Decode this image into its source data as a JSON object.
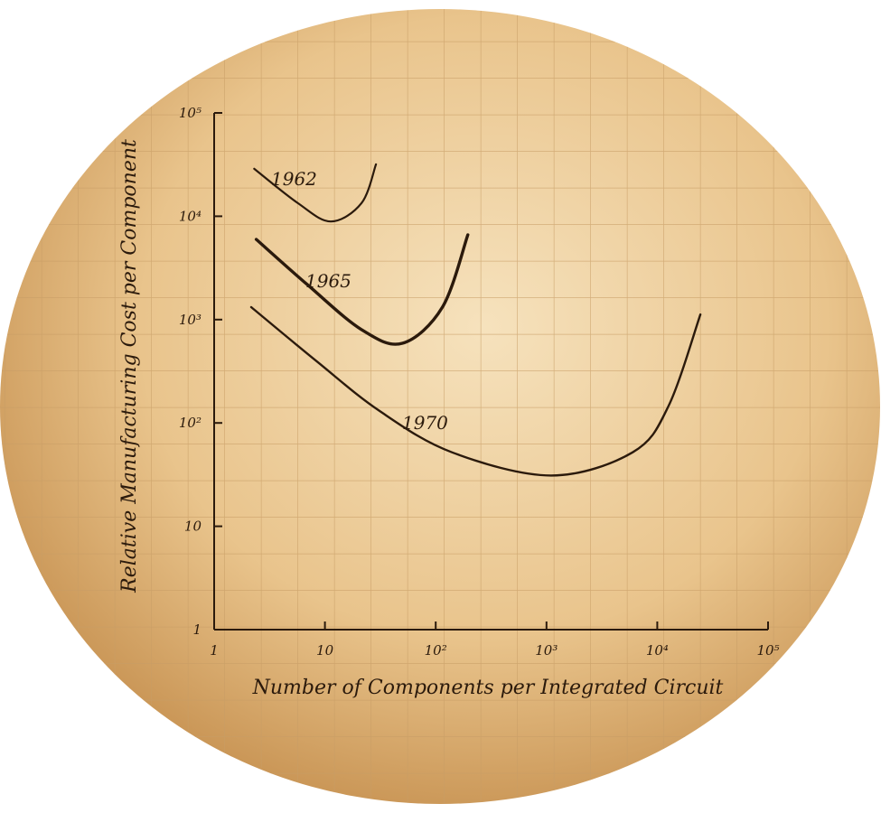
{
  "chart_data": {
    "type": "line",
    "x_label": "Number of Components per Integrated Circuit",
    "y_label": "Relative Manufacturing Cost per Component",
    "xscale": "log",
    "yscale": "log",
    "xlim": [
      1,
      100000
    ],
    "ylim": [
      1,
      100000
    ],
    "xticks": [
      1,
      10,
      {
        "value": 100,
        "label": "10²"
      },
      {
        "value": 1000,
        "label": "10³"
      },
      {
        "value": 10000,
        "label": "10⁴"
      },
      {
        "value": 100000,
        "label": "10⁵"
      }
    ],
    "yticks": [
      1,
      10,
      {
        "value": 100,
        "label": "10²"
      },
      {
        "value": 1000,
        "label": "10³"
      },
      {
        "value": 10000,
        "label": "10⁴"
      },
      {
        "value": 100000,
        "label": "10⁵"
      }
    ],
    "color": "#2b1a0c",
    "series": [
      {
        "name": "1962",
        "x": [
          2.3,
          5.7,
          11.3,
          21.4,
          28.9
        ],
        "values": [
          28800,
          13400,
          8900,
          13400,
          31800
        ]
      },
      {
        "name": "1965",
        "x": [
          2.4,
          6.9,
          21.4,
          50,
          115,
          195
        ],
        "values": [
          5970,
          2190,
          800,
          590,
          1320,
          6610
        ]
      },
      {
        "name": "1970",
        "x": [
          2.16,
          8.4,
          31,
          140,
          1100,
          6000,
          12600,
          24500
        ],
        "values": [
          1320,
          396,
          131,
          52,
          31,
          52,
          145,
          1120
        ]
      }
    ]
  }
}
